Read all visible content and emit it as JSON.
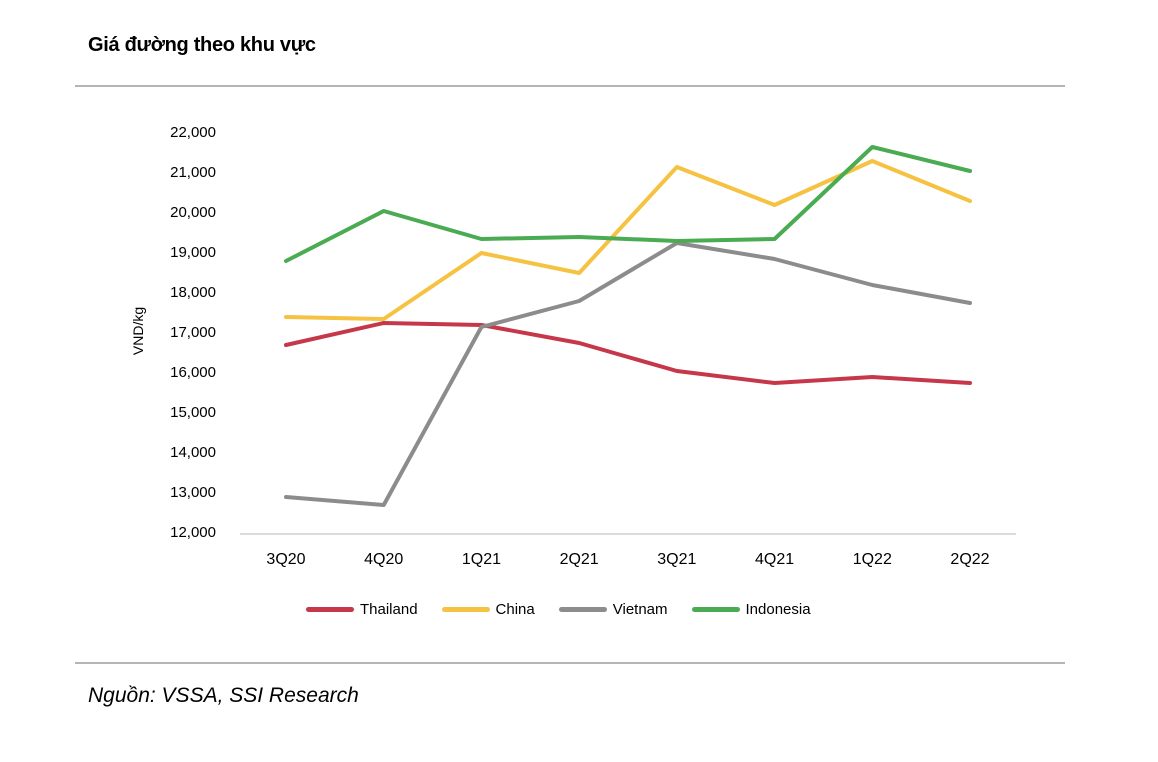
{
  "header": {
    "title": "Giá đường theo khu vực"
  },
  "footer": {
    "source_label": "Nguồn: VSSA, SSI Research"
  },
  "chart_data": {
    "type": "line",
    "title": "Giá đường theo khu vực",
    "xlabel": "",
    "ylabel": "VND/kg",
    "categories": [
      "3Q20",
      "4Q20",
      "1Q21",
      "2Q21",
      "3Q21",
      "4Q21",
      "1Q22",
      "2Q22"
    ],
    "series": [
      {
        "name": "Thailand",
        "color": "#c6374a",
        "values": [
          16700,
          17250,
          17200,
          16750,
          16050,
          15750,
          15900,
          15750
        ]
      },
      {
        "name": "China",
        "color": "#f5c242",
        "values": [
          17400,
          17350,
          19000,
          18500,
          21150,
          20200,
          21300,
          20300
        ]
      },
      {
        "name": "Vietnam",
        "color": "#8c8c8c",
        "values": [
          12900,
          12700,
          17150,
          17800,
          19250,
          18850,
          18200,
          17750
        ]
      },
      {
        "name": "Indonesia",
        "color": "#4aab52",
        "values": [
          18800,
          20050,
          19350,
          19400,
          19300,
          19350,
          21650,
          21050
        ]
      }
    ],
    "ylim": [
      12000,
      22000
    ],
    "ytick_step": 1000,
    "ytick_labels": [
      "22,000",
      "21,000",
      "20,000",
      "19,000",
      "18,000",
      "17,000",
      "16,000",
      "15,000",
      "14,000",
      "13,000",
      "12,000"
    ],
    "grid": false,
    "legend_position": "bottom",
    "axis_line_color": "#dbdbdb"
  }
}
